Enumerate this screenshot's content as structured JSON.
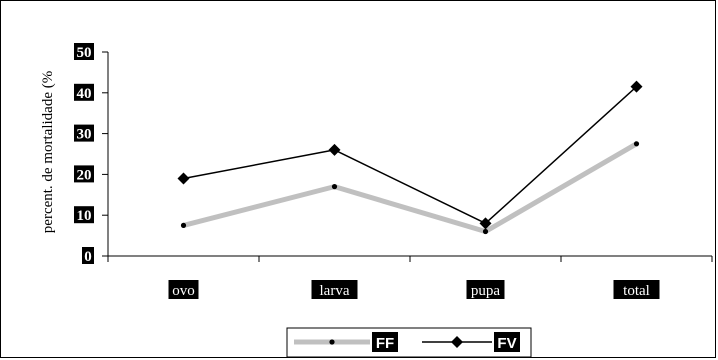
{
  "chart_data": {
    "type": "line",
    "categories": [
      "ovo",
      "larva",
      "pupa",
      "total"
    ],
    "ylabel": "percent. de mortalidade (%",
    "ylim": [
      0,
      50
    ],
    "yticks": [
      0,
      10,
      20,
      30,
      40,
      50
    ],
    "grid": false,
    "legend_position": "bottom",
    "series": [
      {
        "name": "FF",
        "values": [
          7.5,
          17,
          6,
          27.5
        ],
        "color": "#c0c0c0",
        "marker": "dot"
      },
      {
        "name": "FV",
        "values": [
          19,
          26,
          8,
          41.5
        ],
        "color": "#000000",
        "marker": "diamond"
      }
    ]
  }
}
